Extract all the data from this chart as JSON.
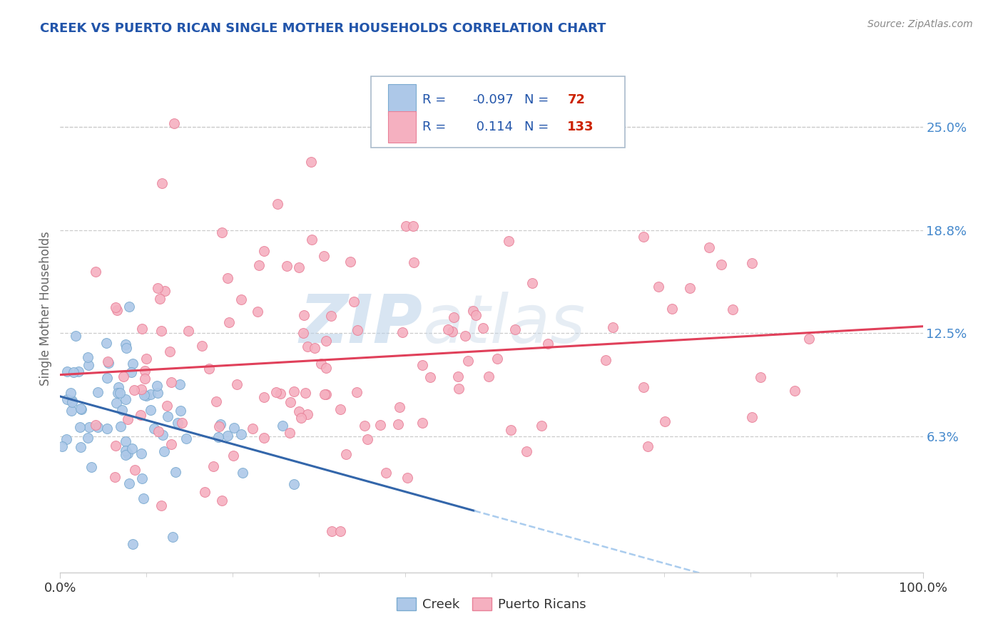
{
  "title": "CREEK VS PUERTO RICAN SINGLE MOTHER HOUSEHOLDS CORRELATION CHART",
  "source_text": "Source: ZipAtlas.com",
  "ylabel": "Single Mother Households",
  "xlim": [
    0,
    1
  ],
  "ylim": [
    -0.02,
    0.3
  ],
  "ytick_positions": [
    0.0625,
    0.125,
    0.1875,
    0.25
  ],
  "ytick_labels": [
    "6.3%",
    "12.5%",
    "18.8%",
    "25.0%"
  ],
  "xtick_positions": [
    0.0,
    1.0
  ],
  "xtick_labels": [
    "0.0%",
    "100.0%"
  ],
  "creek_color": "#adc8e8",
  "creek_edge_color": "#7aaad0",
  "puerto_rican_color": "#f5b0c0",
  "puerto_rican_edge_color": "#e88098",
  "creek_line_color": "#3366aa",
  "puerto_rican_line_color": "#e0405a",
  "dashed_line_color": "#aaccee",
  "creek_R": -0.097,
  "creek_N": 72,
  "puerto_rican_R": 0.114,
  "puerto_rican_N": 133,
  "watermark_zip": "ZIP",
  "watermark_atlas": "atlas",
  "background_color": "#ffffff",
  "title_color": "#2255aa",
  "ytick_color": "#4488cc",
  "xtick_color": "#333333",
  "legend_text_color": "#2255aa",
  "legend_N_color": "#cc2200",
  "grid_color": "#cccccc",
  "source_color": "#888888",
  "ylabel_color": "#666666",
  "creek_seed": 12,
  "pr_seed": 77
}
